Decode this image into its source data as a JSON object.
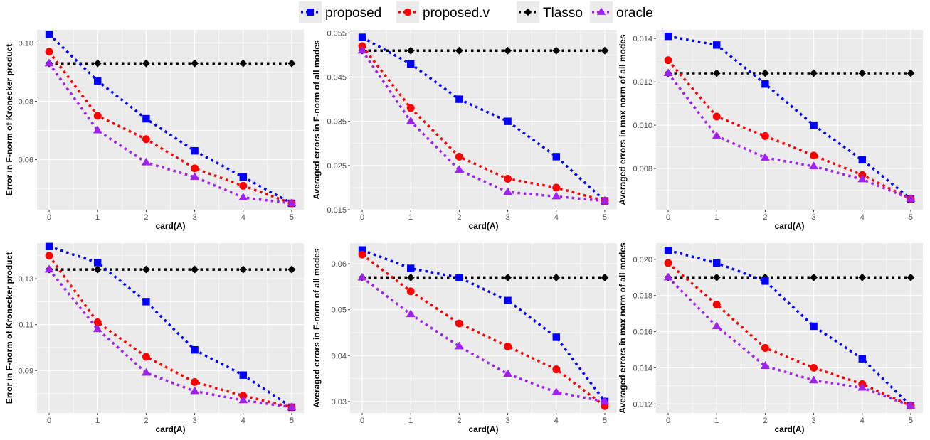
{
  "legend": {
    "entries": [
      {
        "label": "proposed",
        "color": "#0000ff",
        "marker": "square"
      },
      {
        "label": "proposed.v",
        "color": "#ff0000",
        "marker": "circle"
      },
      {
        "label": "Tlasso",
        "color": "#000000",
        "marker": "diamond"
      },
      {
        "label": "oracle",
        "color": "#a020f0",
        "marker": "triangle"
      }
    ]
  },
  "chart_data": [
    {
      "type": "line",
      "xlabel": "card(A)",
      "ylabel": "Error in F-norm of Kronecker product",
      "x": [
        0,
        1,
        2,
        3,
        4,
        5
      ],
      "xlim": [
        -0.25,
        5.25
      ],
      "ylim": [
        0.0428,
        0.1045
      ],
      "yticks": [
        0.06,
        0.08,
        0.1
      ],
      "ytick_labels": [
        "0.06",
        "0.08",
        "0.10"
      ],
      "series": [
        {
          "name": "proposed",
          "values": [
            0.103,
            0.087,
            0.074,
            0.063,
            0.054,
            0.045
          ]
        },
        {
          "name": "proposed.v",
          "values": [
            0.097,
            0.075,
            0.067,
            0.057,
            0.051,
            0.045
          ]
        },
        {
          "name": "Tlasso",
          "values": [
            0.093,
            0.093,
            0.093,
            0.093,
            0.093,
            0.093
          ]
        },
        {
          "name": "oracle",
          "values": [
            0.093,
            0.07,
            0.059,
            0.054,
            0.047,
            0.045
          ]
        }
      ]
    },
    {
      "type": "line",
      "xlabel": "card(A)",
      "ylabel": "Averaged errors in F-norm of all modes",
      "x": [
        0,
        1,
        2,
        3,
        4,
        5
      ],
      "xlim": [
        -0.25,
        5.25
      ],
      "ylim": [
        0.015,
        0.0557
      ],
      "yticks": [
        0.015,
        0.025,
        0.035,
        0.045,
        0.055
      ],
      "ytick_labels": [
        "0.015",
        "0.025",
        "0.035",
        "0.045",
        "0.055"
      ],
      "series": [
        {
          "name": "proposed",
          "values": [
            0.054,
            0.048,
            0.04,
            0.035,
            0.027,
            0.017
          ]
        },
        {
          "name": "proposed.v",
          "values": [
            0.052,
            0.038,
            0.027,
            0.022,
            0.02,
            0.017
          ]
        },
        {
          "name": "Tlasso",
          "values": [
            0.051,
            0.051,
            0.051,
            0.051,
            0.051,
            0.051
          ]
        },
        {
          "name": "oracle",
          "values": [
            0.051,
            0.035,
            0.024,
            0.019,
            0.018,
            0.017
          ]
        }
      ]
    },
    {
      "type": "line",
      "xlabel": "card(A)",
      "ylabel": "Averaged errors in max norm of all modes",
      "x": [
        0,
        1,
        2,
        3,
        4,
        5
      ],
      "xlim": [
        -0.25,
        5.25
      ],
      "ylim": [
        0.0061,
        0.0144
      ],
      "yticks": [
        0.008,
        0.01,
        0.012,
        0.014
      ],
      "ytick_labels": [
        "0.008",
        "0.010",
        "0.012",
        "0.014"
      ],
      "series": [
        {
          "name": "proposed",
          "values": [
            0.0141,
            0.0137,
            0.0119,
            0.01,
            0.0084,
            0.0066
          ]
        },
        {
          "name": "proposed.v",
          "values": [
            0.013,
            0.0104,
            0.0095,
            0.0086,
            0.0077,
            0.0066
          ]
        },
        {
          "name": "Tlasso",
          "values": [
            0.0124,
            0.0124,
            0.0124,
            0.0124,
            0.0124,
            0.0124
          ]
        },
        {
          "name": "oracle",
          "values": [
            0.0124,
            0.0095,
            0.0085,
            0.0081,
            0.0075,
            0.0066
          ]
        }
      ]
    },
    {
      "type": "line",
      "xlabel": "card(A)",
      "ylabel": "Error in F-norm of Kronecker product",
      "x": [
        0,
        1,
        2,
        3,
        4,
        5
      ],
      "xlim": [
        -0.25,
        5.25
      ],
      "ylim": [
        0.0715,
        0.1455
      ],
      "yticks": [
        0.09,
        0.11,
        0.13
      ],
      "ytick_labels": [
        "0.09",
        "0.11",
        "0.13"
      ],
      "series": [
        {
          "name": "proposed",
          "values": [
            0.144,
            0.137,
            0.12,
            0.099,
            0.088,
            0.074
          ]
        },
        {
          "name": "proposed.v",
          "values": [
            0.14,
            0.111,
            0.096,
            0.085,
            0.079,
            0.074
          ]
        },
        {
          "name": "Tlasso",
          "values": [
            0.134,
            0.134,
            0.134,
            0.134,
            0.134,
            0.134
          ]
        },
        {
          "name": "oracle",
          "values": [
            0.134,
            0.108,
            0.089,
            0.081,
            0.077,
            0.074
          ]
        }
      ]
    },
    {
      "type": "line",
      "xlabel": "card(A)",
      "ylabel": "Averaged errors in F-norm of all modes",
      "x": [
        0,
        1,
        2,
        3,
        4,
        5
      ],
      "xlim": [
        -0.25,
        5.25
      ],
      "ylim": [
        0.0275,
        0.0645
      ],
      "yticks": [
        0.03,
        0.04,
        0.05,
        0.06
      ],
      "ytick_labels": [
        "0.03",
        "0.04",
        "0.05",
        "0.06"
      ],
      "series": [
        {
          "name": "proposed",
          "values": [
            0.063,
            0.059,
            0.057,
            0.052,
            0.044,
            0.03
          ]
        },
        {
          "name": "proposed.v",
          "values": [
            0.062,
            0.054,
            0.047,
            0.042,
            0.037,
            0.029
          ]
        },
        {
          "name": "Tlasso",
          "values": [
            0.057,
            0.057,
            0.057,
            0.057,
            0.057,
            0.057
          ]
        },
        {
          "name": "oracle",
          "values": [
            0.057,
            0.049,
            0.042,
            0.036,
            0.032,
            0.03
          ]
        }
      ]
    },
    {
      "type": "line",
      "xlabel": "card(A)",
      "ylabel": "Averaged errors in max norm of all modes",
      "x": [
        0,
        1,
        2,
        3,
        4,
        5
      ],
      "xlim": [
        -0.25,
        5.25
      ],
      "ylim": [
        0.0115,
        0.0209
      ],
      "yticks": [
        0.012,
        0.014,
        0.016,
        0.018,
        0.02
      ],
      "ytick_labels": [
        "0.012",
        "0.014",
        "0.016",
        "0.018",
        "0.020"
      ],
      "series": [
        {
          "name": "proposed",
          "values": [
            0.0205,
            0.0198,
            0.0188,
            0.0163,
            0.0145,
            0.0119
          ]
        },
        {
          "name": "proposed.v",
          "values": [
            0.0198,
            0.0175,
            0.0151,
            0.014,
            0.0131,
            0.0119
          ]
        },
        {
          "name": "Tlasso",
          "values": [
            0.019,
            0.019,
            0.019,
            0.019,
            0.019,
            0.019
          ]
        },
        {
          "name": "oracle",
          "values": [
            0.019,
            0.0163,
            0.0141,
            0.0133,
            0.0129,
            0.0119
          ]
        }
      ]
    }
  ]
}
